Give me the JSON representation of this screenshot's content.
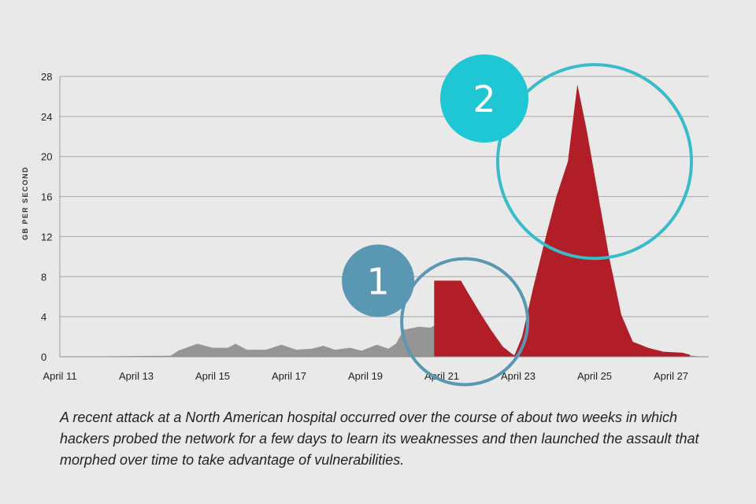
{
  "chart_data": {
    "type": "area",
    "ylabel": "GB PER SECOND",
    "xlabel": "",
    "title": "",
    "ylim": [
      0,
      28
    ],
    "yticks": [
      0,
      4,
      8,
      12,
      16,
      20,
      24,
      28
    ],
    "x_tick_labels": [
      "April 11",
      "April 13",
      "April 15",
      "April 17",
      "April 19",
      "April 21",
      "April 23",
      "April 25",
      "April 27"
    ],
    "grid": true,
    "series": [
      {
        "color": "#959595",
        "points": [
          [
            11.0,
            0.0
          ],
          [
            13.9,
            0.1
          ],
          [
            14.1,
            0.6
          ],
          [
            14.6,
            1.3
          ],
          [
            15.0,
            0.9
          ],
          [
            15.4,
            0.9
          ],
          [
            15.6,
            1.3
          ],
          [
            15.9,
            0.7
          ],
          [
            16.4,
            0.7
          ],
          [
            16.8,
            1.2
          ],
          [
            17.2,
            0.7
          ],
          [
            17.6,
            0.8
          ],
          [
            17.9,
            1.1
          ],
          [
            18.2,
            0.7
          ],
          [
            18.6,
            0.9
          ],
          [
            18.9,
            0.6
          ],
          [
            19.3,
            1.2
          ],
          [
            19.6,
            0.8
          ],
          [
            19.8,
            1.3
          ],
          [
            20.0,
            2.7
          ],
          [
            20.4,
            3.0
          ],
          [
            20.7,
            2.9
          ],
          [
            20.8,
            3.1
          ],
          [
            20.9,
            2.8
          ],
          [
            20.95,
            7.5
          ],
          [
            21.0,
            2.4
          ],
          [
            21.3,
            2.4
          ],
          [
            21.5,
            1.2
          ],
          [
            21.8,
            1.2
          ],
          [
            22.1,
            0.4
          ],
          [
            22.5,
            0.7
          ],
          [
            22.9,
            0.2
          ],
          [
            23.3,
            1.2
          ],
          [
            23.7,
            0.4
          ],
          [
            24.0,
            0.9
          ],
          [
            24.3,
            0.2
          ],
          [
            24.6,
            0.6
          ],
          [
            24.8,
            0.3
          ],
          [
            25.0,
            0.9
          ],
          [
            25.4,
            0.8
          ],
          [
            25.7,
            0.3
          ],
          [
            26.0,
            0.6
          ],
          [
            26.4,
            0.3
          ],
          [
            26.8,
            0.4
          ],
          [
            27.2,
            0.2
          ],
          [
            27.6,
            0.1
          ],
          [
            27.8,
            0.0
          ]
        ]
      },
      {
        "color": "#b11e28",
        "points": [
          [
            20.8,
            0.0
          ],
          [
            20.8,
            7.6
          ],
          [
            21.5,
            7.6
          ],
          [
            21.7,
            6.3
          ],
          [
            22.0,
            4.4
          ],
          [
            22.3,
            2.6
          ],
          [
            22.6,
            1.0
          ],
          [
            22.9,
            0.1
          ],
          [
            23.1,
            2.0
          ],
          [
            23.4,
            7.0
          ],
          [
            23.7,
            11.6
          ],
          [
            24.0,
            16.0
          ],
          [
            24.3,
            19.5
          ],
          [
            24.55,
            27.2
          ],
          [
            24.8,
            22.5
          ],
          [
            25.1,
            16.0
          ],
          [
            25.4,
            9.6
          ],
          [
            25.7,
            4.2
          ],
          [
            26.0,
            1.5
          ],
          [
            26.4,
            0.9
          ],
          [
            26.8,
            0.5
          ],
          [
            27.3,
            0.4
          ],
          [
            27.5,
            0.2
          ],
          [
            27.5,
            0.0
          ]
        ]
      }
    ],
    "annotations": [
      {
        "label": "1",
        "color": "#5a97b3",
        "ring_color": "#5a97b3",
        "target_x": 21.6,
        "target_y": 3.5
      },
      {
        "label": "2",
        "color": "#1fc6d4",
        "ring_color": "#38bcc9",
        "target_x": 25.0,
        "target_y": 19.5
      }
    ]
  },
  "caption": "A recent attack at a North American hospital occurred over the course of about two weeks in which hackers probed the network for a few days to learn its weaknesses and then launched the assault that morphed over time to take advantage of vulnerabilities."
}
